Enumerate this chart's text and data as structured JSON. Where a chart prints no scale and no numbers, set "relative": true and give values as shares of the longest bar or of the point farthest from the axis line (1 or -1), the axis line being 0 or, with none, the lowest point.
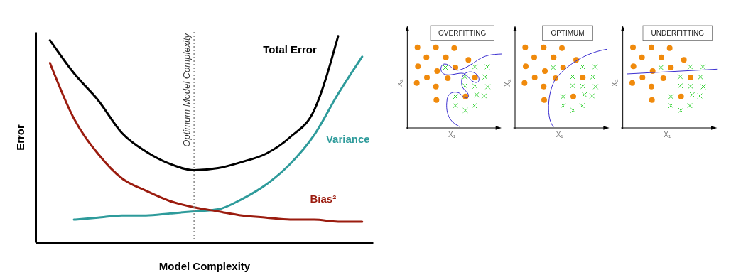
{
  "chart_data": [
    {
      "type": "line",
      "relative": true,
      "xlabel": "Model Complexity",
      "ylabel": "Error",
      "legend": false,
      "categories": [
        null,
        null,
        null,
        null,
        null,
        null,
        null,
        null,
        null,
        null,
        null,
        null,
        null,
        null
      ],
      "series": [
        {
          "name": "Total Error",
          "color": "#000000",
          "values": [
            0.98,
            0.82,
            0.69,
            0.53,
            0.44,
            0.38,
            0.35,
            0.36,
            0.39,
            0.43,
            0.51,
            0.64,
            1.0,
            null
          ]
        },
        {
          "name": "Variance",
          "color": "#2e9b9b",
          "values": [
            null,
            0.11,
            0.12,
            0.13,
            0.13,
            0.14,
            0.15,
            0.16,
            0.21,
            0.28,
            0.38,
            0.52,
            0.72,
            0.9
          ]
        },
        {
          "name": "Bias²",
          "color": "#9b1c0f",
          "values": [
            0.87,
            0.6,
            0.43,
            0.31,
            0.25,
            0.2,
            0.17,
            0.15,
            0.13,
            0.12,
            0.11,
            0.11,
            0.1,
            0.1
          ]
        }
      ],
      "annotations": [
        "Optimum Model Complexity"
      ]
    },
    {
      "type": "other",
      "title": "OVERFITTING",
      "xlabel": "X₁",
      "ylabel": "X₂"
    },
    {
      "type": "other",
      "title": "OPTIMUM",
      "xlabel": "X₁",
      "ylabel": "X₂"
    },
    {
      "type": "other",
      "title": "UNDERFITTING",
      "xlabel": "X₁",
      "ylabel": "X₂"
    }
  ]
}
